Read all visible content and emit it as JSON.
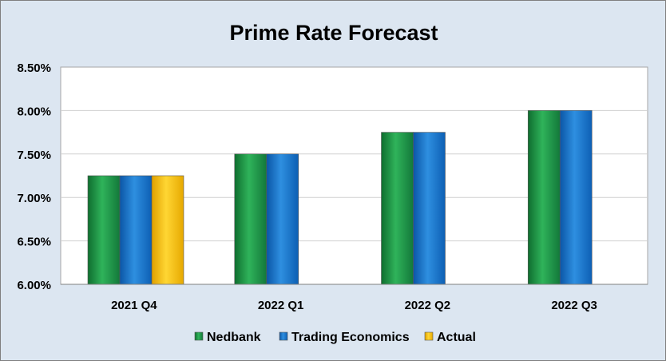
{
  "chart_data": {
    "type": "bar",
    "title": "Prime Rate Forecast",
    "categories": [
      "2021 Q4",
      "2022 Q1",
      "2022 Q2",
      "2022 Q3"
    ],
    "series": [
      {
        "name": "Nedbank",
        "color": "#1f9e4a",
        "values": [
          7.25,
          7.5,
          7.75,
          8.0
        ]
      },
      {
        "name": "Trading Economics",
        "color": "#1878d0",
        "values": [
          7.25,
          7.5,
          7.75,
          8.0
        ]
      },
      {
        "name": "Actual",
        "color": "#ffc000",
        "values": [
          7.25,
          null,
          null,
          null
        ]
      }
    ],
    "ylim": [
      6.0,
      8.5
    ],
    "yticks": [
      "6.00%",
      "6.50%",
      "7.00%",
      "7.50%",
      "8.00%",
      "8.50%"
    ],
    "grid": true,
    "legend_position": "bottom"
  }
}
